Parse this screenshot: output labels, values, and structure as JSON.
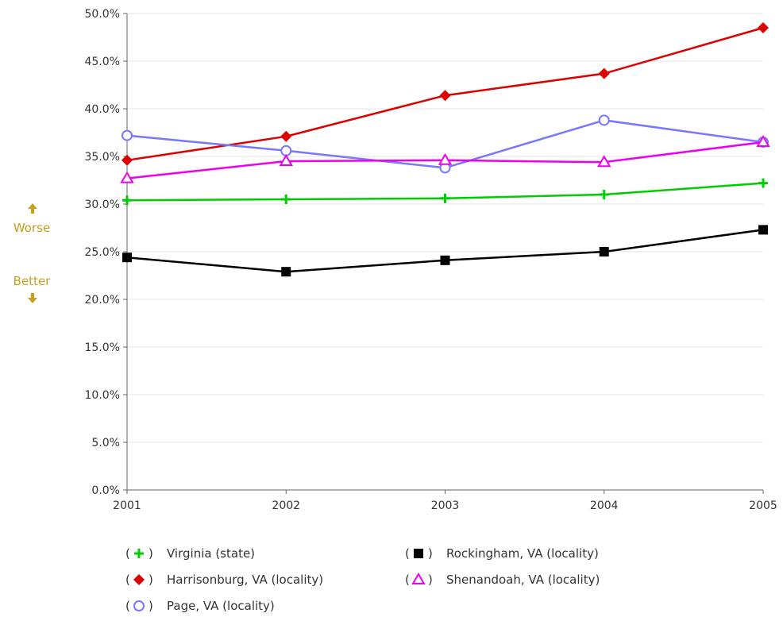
{
  "indicator": {
    "worse_label": "Worse",
    "better_label": "Better",
    "color": "#c8a020"
  },
  "chart_data": {
    "type": "line",
    "title": "",
    "xlabel": "",
    "ylabel": "",
    "x": [
      "2001",
      "2002",
      "2003",
      "2004",
      "2005"
    ],
    "ylim": [
      0,
      50
    ],
    "yticks": [
      "0.0%",
      "5.0%",
      "10.0%",
      "15.0%",
      "20.0%",
      "25.0%",
      "30.0%",
      "35.0%",
      "40.0%",
      "45.0%",
      "50.0%"
    ],
    "grid": true,
    "legend_position": "bottom",
    "series": [
      {
        "name": "Virginia (state)",
        "color": "#00cc00",
        "marker": "plus",
        "values": [
          30.4,
          30.5,
          30.6,
          31.0,
          32.2
        ]
      },
      {
        "name": "Harrisonburg, VA (locality)",
        "color": "#dd0000",
        "marker": "diamond",
        "values": [
          34.6,
          37.1,
          41.4,
          43.7,
          48.5
        ]
      },
      {
        "name": "Page, VA (locality)",
        "color": "#7777ff",
        "marker": "circle",
        "values": [
          37.2,
          35.6,
          33.8,
          38.8,
          36.5
        ]
      },
      {
        "name": "Rockingham, VA (locality)",
        "color": "#000000",
        "marker": "square",
        "values": [
          24.4,
          22.9,
          24.1,
          25.0,
          27.3
        ]
      },
      {
        "name": "Shenandoah, VA (locality)",
        "color": "#ee00ee",
        "marker": "triangle",
        "values": [
          32.7,
          34.5,
          34.6,
          34.4,
          36.5
        ]
      }
    ]
  }
}
